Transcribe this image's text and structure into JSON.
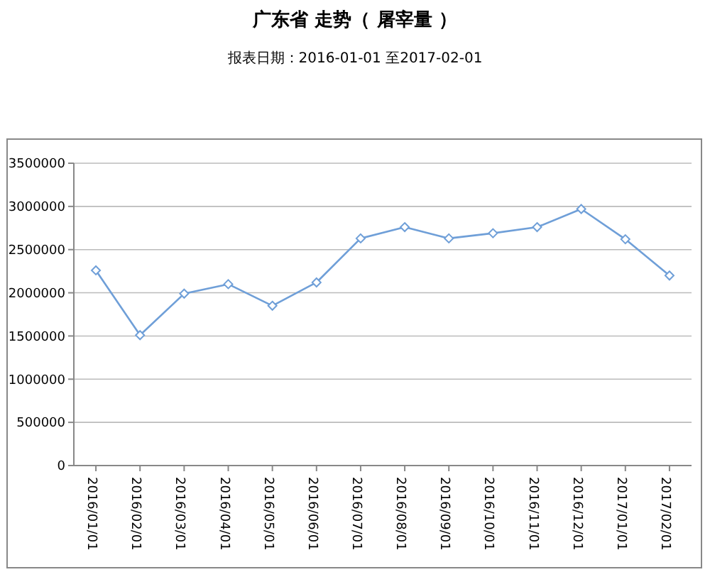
{
  "chart_data": {
    "type": "line",
    "title": "广东省 走势（ 屠宰量 ）",
    "subtitle": "报表日期：2016-01-01 至2017-02-01",
    "categories": [
      "2016/01/01",
      "2016/02/01",
      "2016/03/01",
      "2016/04/01",
      "2016/05/01",
      "2016/06/01",
      "2016/07/01",
      "2016/08/01",
      "2016/09/01",
      "2016/10/01",
      "2016/11/01",
      "2016/12/01",
      "2017/01/01",
      "2017/02/01"
    ],
    "series": [
      {
        "color": "#6f9fd8",
        "values": [
          2260000,
          1510000,
          1990000,
          2100000,
          1850000,
          2120000,
          2630000,
          2760000,
          2630000,
          2690000,
          2760000,
          2970000,
          2620000,
          2200000
        ]
      }
    ],
    "ylim": [
      0,
      3500000
    ],
    "yticks": [
      0,
      500000,
      1000000,
      1500000,
      2000000,
      2500000,
      3000000,
      3500000
    ],
    "grid": "y",
    "marker": "diamond",
    "line_style": "solid"
  }
}
